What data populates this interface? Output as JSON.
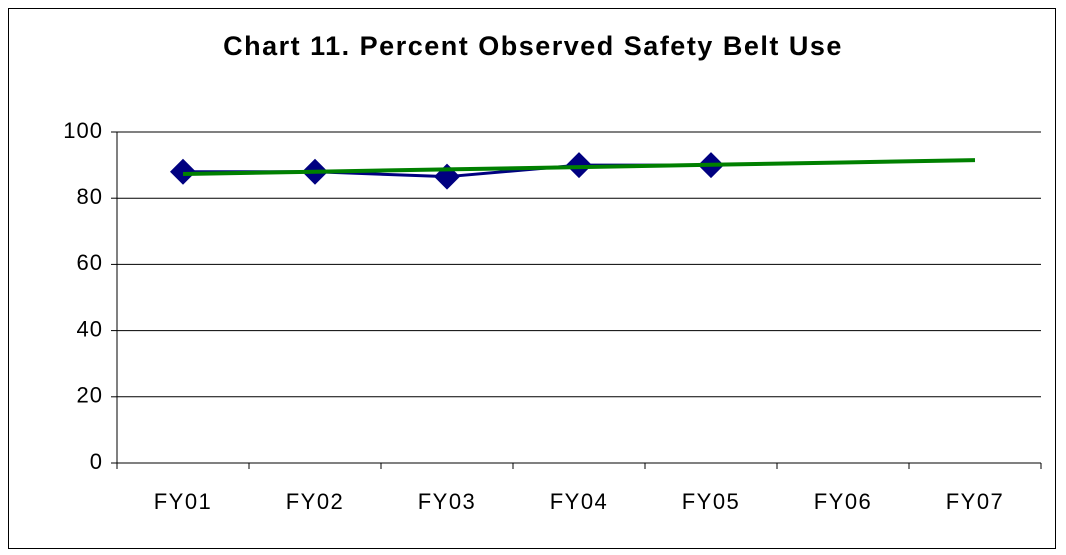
{
  "chart_data": {
    "type": "line",
    "title": "Chart 11. Percent Observed Safety Belt Use",
    "categories": [
      "FY01",
      "FY02",
      "FY03",
      "FY04",
      "FY05",
      "FY06",
      "FY07"
    ],
    "series": [
      {
        "color": "#000080",
        "values": [
          88,
          88,
          86.5,
          90,
          90,
          null,
          null
        ]
      },
      {
        "color": "#008000",
        "values": [
          87.3,
          88.0,
          88.7,
          89.4,
          90.1,
          90.8,
          91.5
        ]
      }
    ],
    "ylim": [
      0,
      100
    ],
    "yticks": [
      0,
      20,
      40,
      60,
      80,
      100
    ],
    "grid": true
  }
}
